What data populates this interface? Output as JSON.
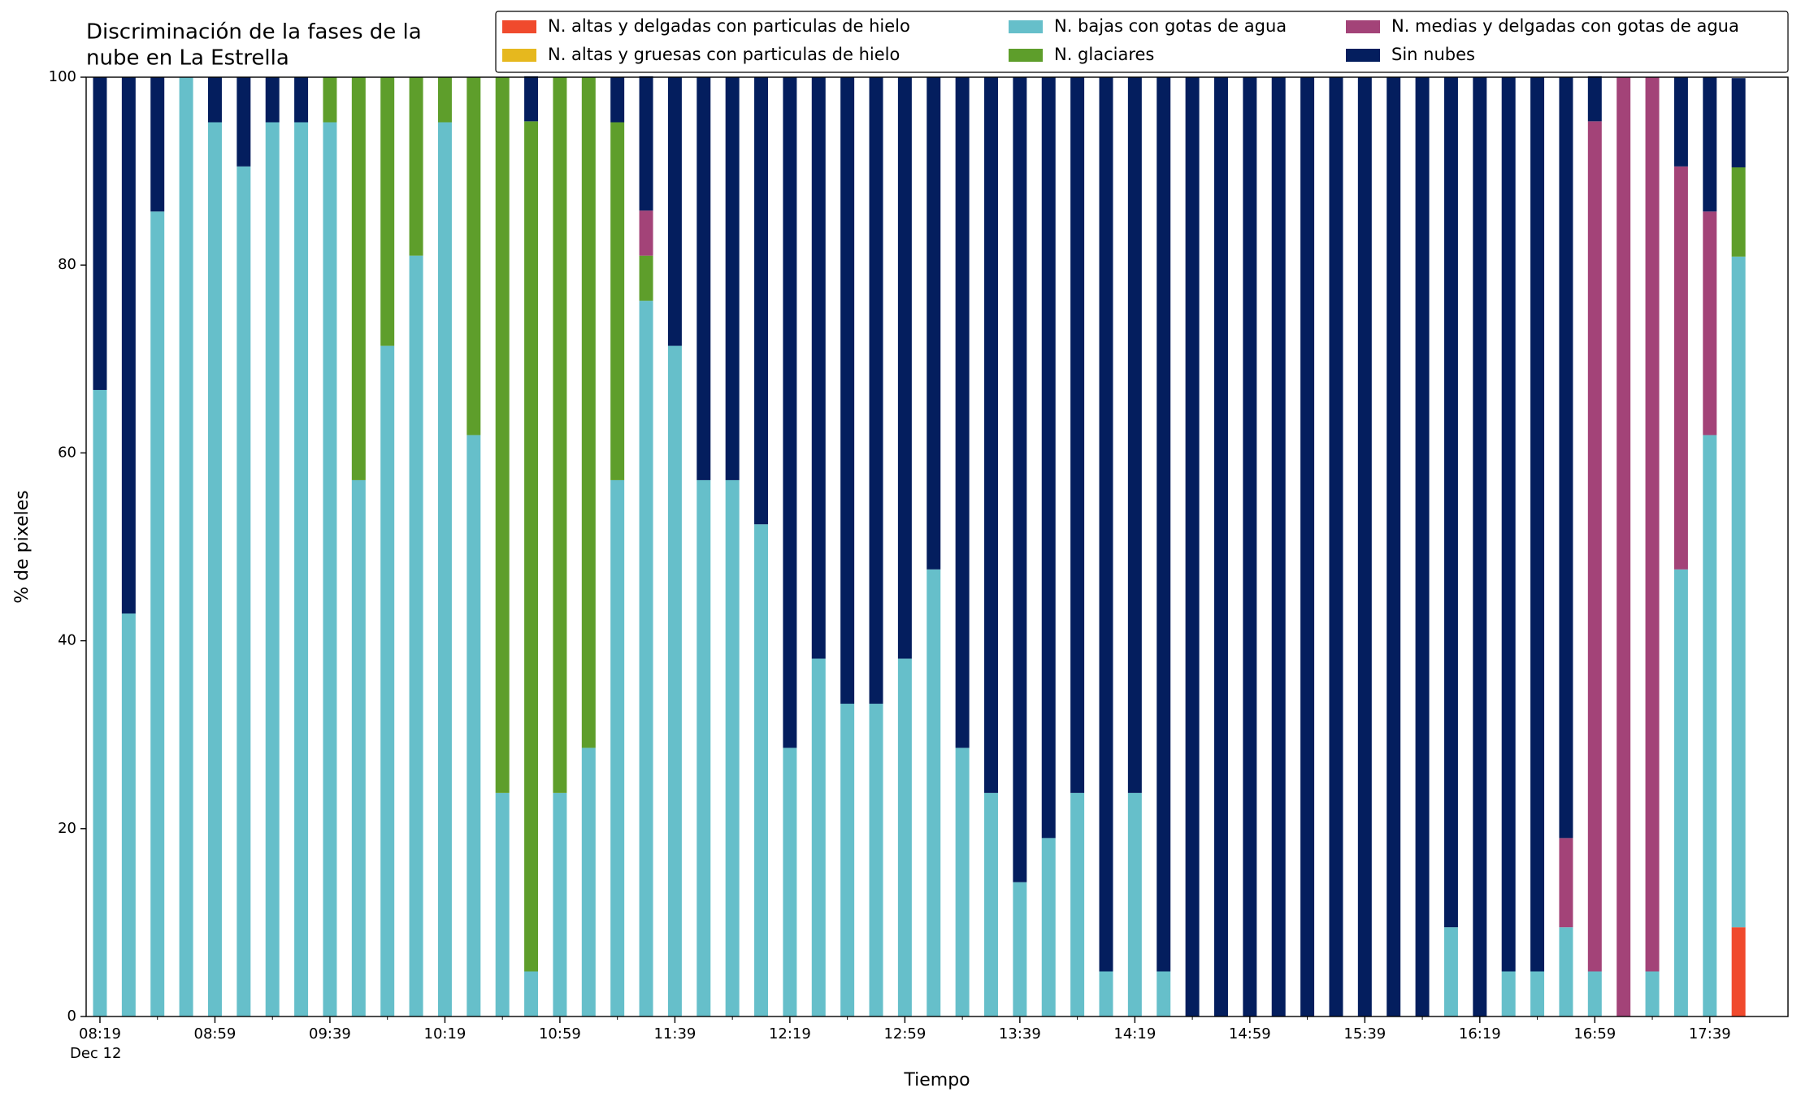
{
  "chart_data": {
    "type": "stacked_bar",
    "title": [
      "Discriminación de la fases de la",
      "nube en La Estrella"
    ],
    "x_label": "Tiempo",
    "y_label": "% de pixeles",
    "x_sublabel": "Dec 12",
    "categories": [
      "08:19",
      null,
      null,
      null,
      "08:59",
      null,
      null,
      null,
      "09:39",
      null,
      null,
      null,
      "10:19",
      null,
      null,
      null,
      "10:59",
      null,
      null,
      null,
      "11:39",
      null,
      null,
      null,
      "12:19",
      null,
      null,
      null,
      "12:59",
      null,
      null,
      null,
      "13:39",
      null,
      null,
      null,
      "14:19",
      null,
      null,
      null,
      "14:59",
      null,
      null,
      null,
      "15:39",
      null,
      null,
      null,
      "16:19",
      null,
      null,
      null,
      "16:59",
      null,
      null,
      null,
      "17:39",
      null
    ],
    "ylim": [
      0,
      100
    ],
    "yticks": [
      0,
      20,
      40,
      60,
      80,
      100
    ],
    "grid": false,
    "legend": "top-right",
    "series": [
      {
        "name": "N. altas y delgadas con particulas de hielo",
        "color": "#f04a2d",
        "values": [
          0,
          0,
          0,
          0,
          0,
          0,
          0,
          0,
          0,
          0,
          0,
          0,
          0,
          0,
          0,
          0,
          0,
          0,
          0,
          0,
          0,
          0,
          0,
          0,
          0,
          0,
          0,
          0,
          0,
          0,
          0,
          0,
          0,
          0,
          0,
          0,
          0,
          0,
          0,
          0,
          0,
          0,
          0,
          0,
          0,
          0,
          0,
          0,
          0,
          0,
          0,
          0,
          0,
          0,
          0,
          0,
          0,
          9.5
        ]
      },
      {
        "name": "N. altas y gruesas con particulas de hielo",
        "color": "#e6b81e",
        "values": [
          0,
          0,
          0,
          0,
          0,
          0,
          0,
          0,
          0,
          0,
          0,
          0,
          0,
          0,
          0,
          0,
          0,
          0,
          0,
          0,
          0,
          0,
          0,
          0,
          0,
          0,
          0,
          0,
          0,
          0,
          0,
          0,
          0,
          0,
          0,
          0,
          0,
          0,
          0,
          0,
          0,
          0,
          0,
          0,
          0,
          0,
          0,
          0,
          0,
          0,
          0,
          0,
          0,
          0,
          0,
          0,
          0,
          0
        ]
      },
      {
        "name": "N. bajas con gotas de agua",
        "color": "#66bfca",
        "values": [
          66.7,
          42.9,
          85.7,
          100,
          95.2,
          90.5,
          95.2,
          95.2,
          95.2,
          57.1,
          71.4,
          81,
          95.2,
          61.9,
          23.8,
          4.8,
          23.8,
          28.6,
          57.1,
          76.2,
          71.4,
          57.1,
          57.1,
          52.4,
          28.6,
          38.1,
          33.3,
          33.3,
          38.1,
          47.6,
          28.6,
          23.8,
          14.3,
          19,
          23.8,
          4.8,
          23.8,
          4.8,
          0,
          0,
          0,
          0,
          0,
          0,
          0,
          0,
          0,
          9.5,
          0,
          4.8,
          4.8,
          9.5,
          4.8,
          0,
          4.8,
          47.6,
          61.9,
          71.4
        ]
      },
      {
        "name": "N. glaciares",
        "color": "#5e9e2b",
        "values": [
          0,
          0,
          0,
          0,
          0,
          0,
          0,
          0,
          4.8,
          42.9,
          28.6,
          19,
          4.8,
          38.1,
          76.2,
          90.5,
          76.2,
          71.4,
          38.1,
          4.8,
          0,
          0,
          0,
          0,
          0,
          0,
          0,
          0,
          0,
          0,
          0,
          0,
          0,
          0,
          0,
          0,
          0,
          0,
          0,
          0,
          0,
          0,
          0,
          0,
          0,
          0,
          0,
          0,
          0,
          0,
          0,
          0,
          0,
          0,
          0,
          0,
          0,
          9.5
        ]
      },
      {
        "name": "N. medias y delgadas con gotas de agua",
        "color": "#a34378",
        "values": [
          0,
          0,
          0,
          0,
          0,
          0,
          0,
          0,
          0,
          0,
          0,
          0,
          0,
          0,
          0,
          0,
          0,
          0,
          0,
          4.8,
          0,
          0,
          0,
          0,
          0,
          0,
          0,
          0,
          0,
          0,
          0,
          0,
          0,
          0,
          0,
          0,
          0,
          0,
          0,
          0,
          0,
          0,
          0,
          0,
          0,
          0,
          0,
          0,
          0,
          0,
          0,
          9.5,
          90.5,
          100,
          95.2,
          42.9,
          23.8,
          0
        ]
      },
      {
        "name": "Sin nubes",
        "color": "#041e5e",
        "values": [
          33.3,
          57.1,
          14.3,
          0,
          4.8,
          9.5,
          4.8,
          4.8,
          0,
          0,
          0,
          0,
          0,
          0,
          0,
          4.8,
          0,
          0,
          4.8,
          14.3,
          28.6,
          42.9,
          42.9,
          47.6,
          71.4,
          61.9,
          66.7,
          66.7,
          61.9,
          52.4,
          71.4,
          76.2,
          85.7,
          81,
          76.2,
          95.2,
          76.2,
          95.2,
          100,
          100,
          100,
          100,
          100,
          100,
          100,
          100,
          100,
          90.5,
          100,
          95.2,
          95.2,
          81,
          4.8,
          0,
          0,
          9.5,
          14.3,
          9.5
        ]
      }
    ]
  }
}
